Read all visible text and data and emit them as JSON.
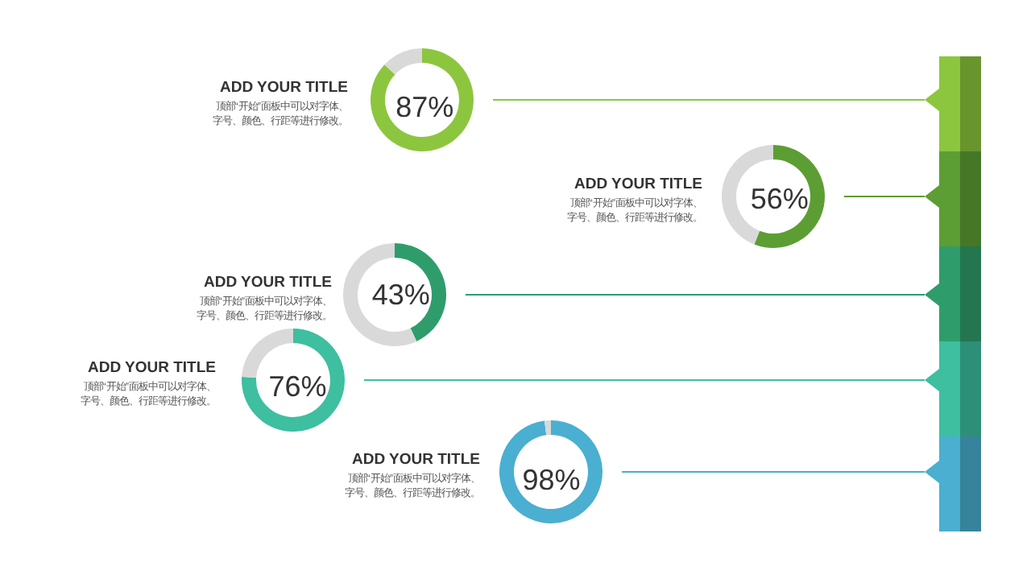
{
  "chart_data": [
    {
      "type": "donut",
      "title": "ADD YOUR TITLE",
      "categories": [
        null,
        null
      ],
      "values": [
        87,
        13
      ],
      "colors": [
        "#8cc63e",
        "#d9d9d9"
      ],
      "value_labels": [
        "87%",
        null
      ],
      "annotations": [
        "顶部“开始”面板中可以对字体、字号、颜色、行距等进行修改。"
      ]
    },
    {
      "type": "donut",
      "title": "ADD YOUR TITLE",
      "categories": [
        null,
        null
      ],
      "values": [
        56,
        44
      ],
      "colors": [
        "#5c9e33",
        "#d9d9d9"
      ],
      "value_labels": [
        "56%",
        null
      ],
      "annotations": [
        "顶部“开始”面板中可以对字体、字号、颜色、行距等进行修改。"
      ]
    },
    {
      "type": "donut",
      "title": "ADD YOUR TITLE",
      "categories": [
        null,
        null
      ],
      "values": [
        43,
        57
      ],
      "colors": [
        "#2f9d6b",
        "#d9d9d9"
      ],
      "value_labels": [
        "43%",
        null
      ],
      "annotations": [
        "顶部“开始”面板中可以对字体、字号、颜色、行距等进行修改。"
      ]
    },
    {
      "type": "donut",
      "title": "ADD YOUR TITLE",
      "categories": [
        null,
        null
      ],
      "values": [
        76,
        24
      ],
      "colors": [
        "#3dbfa0",
        "#d9d9d9"
      ],
      "value_labels": [
        "76%",
        null
      ],
      "annotations": [
        "顶部“开始”面板中可以对字体、字号、颜色、行距等进行修改。"
      ]
    },
    {
      "type": "donut",
      "title": "ADD YOUR TITLE",
      "categories": [
        null,
        null
      ],
      "values": [
        98,
        2
      ],
      "colors": [
        "#4aafd0",
        "#d9d9d9"
      ],
      "value_labels": [
        "98%",
        null
      ],
      "annotations": [
        "顶部“开始”面板中可以对字体、字号、颜色、行距等进行修改。"
      ]
    }
  ]
}
